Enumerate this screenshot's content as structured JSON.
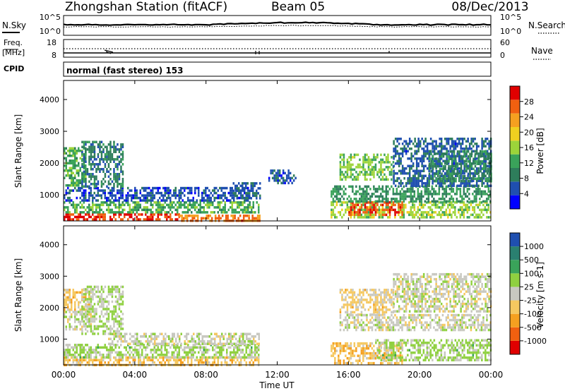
{
  "header": {
    "station": "Zhongshan Station (fitACF)",
    "beam": "Beam 05",
    "date": "08/Dec/2013"
  },
  "noise_panel": {
    "left_label": "N.Sky",
    "right_label": "N.Search",
    "left_ticks": [
      "10^5",
      "10^0"
    ],
    "right_ticks": [
      "10^5",
      "10^0"
    ]
  },
  "freq_panel": {
    "left_label_1": "Freq.",
    "left_label_2": "[MHz]",
    "right_label": "Nave",
    "left_ticks": [
      "18",
      "8"
    ],
    "right_ticks": [
      "60",
      "0"
    ]
  },
  "cpid_panel": {
    "label": "CPID",
    "text": "normal (fast stereo) 153"
  },
  "x_axis": {
    "label": "Time UT",
    "ticks": [
      "00:00",
      "04:00",
      "08:00",
      "12:00",
      "16:00",
      "20:00",
      "00:00"
    ]
  },
  "y_axis": {
    "label": "Slant Range [km]",
    "ticks": [
      "1000",
      "2000",
      "3000",
      "4000"
    ]
  },
  "colors": {
    "power_scale": [
      "#0000ff",
      "#1f4fb0",
      "#2e7d5b",
      "#3aa35a",
      "#9cd43a",
      "#f0d020",
      "#f5a020",
      "#f06010",
      "#e00000"
    ],
    "velocity_scale": [
      "#e00000",
      "#f06010",
      "#f5a020",
      "#f5c860",
      "#c8c8c0",
      "#8fd040",
      "#3aa35a",
      "#2a8070",
      "#1f4fb0"
    ]
  },
  "chart_data": [
    {
      "type": "heatmap",
      "title": "",
      "xlabel": "Time UT",
      "ylabel": "Slant Range [km]",
      "xlim": [
        0,
        24
      ],
      "ylim": [
        180,
        4600
      ],
      "colorbar": {
        "label": "Power [dB]",
        "ticks": [
          "4",
          "8",
          "12",
          "16",
          "20",
          "24",
          "28"
        ],
        "range": [
          0,
          30
        ]
      },
      "regions": [
        {
          "t": [
            0.0,
            6.5
          ],
          "r": [
            200,
            420
          ],
          "value": 27
        },
        {
          "t": [
            6.5,
            11.0
          ],
          "r": [
            200,
            380
          ],
          "value": 24
        },
        {
          "t": [
            0.0,
            11.0
          ],
          "r": [
            420,
            800
          ],
          "value": 12
        },
        {
          "t": [
            0.0,
            10.5
          ],
          "r": [
            800,
            1250
          ],
          "value": 5
        },
        {
          "t": [
            0.0,
            1.2
          ],
          "r": [
            1300,
            2500
          ],
          "value": 12
        },
        {
          "t": [
            1.0,
            3.3
          ],
          "r": [
            1300,
            2700
          ],
          "value": 8
        },
        {
          "t": [
            9.5,
            11.0
          ],
          "r": [
            900,
            1400
          ],
          "value": 6
        },
        {
          "t": [
            11.5,
            13.0
          ],
          "r": [
            1400,
            1800
          ],
          "value": 5
        },
        {
          "t": [
            15.0,
            24.0
          ],
          "r": [
            300,
            800
          ],
          "value": 15
        },
        {
          "t": [
            16.0,
            19.0
          ],
          "r": [
            400,
            800
          ],
          "value": 26
        },
        {
          "t": [
            15.0,
            24.0
          ],
          "r": [
            800,
            1300
          ],
          "value": 10
        },
        {
          "t": [
            15.5,
            18.5
          ],
          "r": [
            1500,
            2300
          ],
          "value": 14
        },
        {
          "t": [
            18.5,
            24.0
          ],
          "r": [
            1300,
            2800
          ],
          "value": 6
        },
        {
          "t": [
            20.5,
            24.0
          ],
          "r": [
            1400,
            2400
          ],
          "value": 9
        }
      ]
    },
    {
      "type": "heatmap",
      "title": "",
      "xlabel": "Time UT",
      "ylabel": "Slant Range [km]",
      "xlim": [
        0,
        24
      ],
      "ylim": [
        180,
        4600
      ],
      "colorbar": {
        "label": "Velocity [m s-1]",
        "ticks": [
          "-1000",
          "-500",
          "-100",
          "-25",
          "25",
          "100",
          "500",
          "1000"
        ],
        "range": [
          -1200,
          1200
        ]
      },
      "regions": [
        {
          "t": [
            0.0,
            11.0
          ],
          "r": [
            200,
            450
          ],
          "value": -300
        },
        {
          "t": [
            0.0,
            11.0
          ],
          "r": [
            450,
            850
          ],
          "value": 200
        },
        {
          "t": [
            2.5,
            11.0
          ],
          "r": [
            850,
            1200
          ],
          "value": 0
        },
        {
          "t": [
            0.0,
            1.5
          ],
          "r": [
            1900,
            2600
          ],
          "value": -300
        },
        {
          "t": [
            0.0,
            1.5
          ],
          "r": [
            1300,
            1900
          ],
          "value": 0
        },
        {
          "t": [
            1.0,
            3.3
          ],
          "r": [
            1200,
            2700
          ],
          "value": 150
        },
        {
          "t": [
            15.0,
            19.0
          ],
          "r": [
            200,
            900
          ],
          "value": -300
        },
        {
          "t": [
            17.5,
            24.0
          ],
          "r": [
            300,
            1000
          ],
          "value": 200
        },
        {
          "t": [
            15.5,
            18.5
          ],
          "r": [
            1800,
            2600
          ],
          "value": -200
        },
        {
          "t": [
            15.5,
            24.0
          ],
          "r": [
            1300,
            1800
          ],
          "value": 0
        },
        {
          "t": [
            18.5,
            24.0
          ],
          "r": [
            1900,
            3100
          ],
          "value": 0
        }
      ]
    }
  ]
}
